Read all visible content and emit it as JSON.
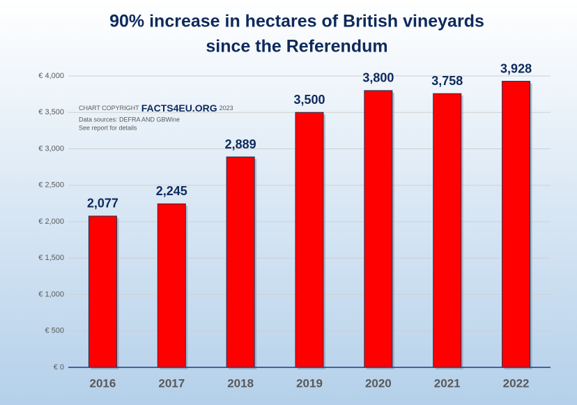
{
  "chart_data": {
    "type": "bar",
    "title": [
      "90% increase in hectares of British vineyards",
      "since the Referendum"
    ],
    "annotations": [
      "CHART COPYRIGHT",
      "FACTS4EU.ORG",
      "2023",
      "Data sources: DEFRA AND GBWine",
      "See report for details"
    ],
    "categories": [
      "2016",
      "2017",
      "2018",
      "2019",
      "2020",
      "2021",
      "2022"
    ],
    "values": [
      2077,
      2245,
      2889,
      3500,
      3800,
      3758,
      3928
    ],
    "value_labels": [
      "2,077",
      "2,245",
      "2,889",
      "3,500",
      "3,800",
      "3,758",
      "3,928"
    ],
    "color": "#ff0000",
    "ylim": [
      0,
      4000
    ],
    "yticks": [
      {
        "value": 0,
        "label": "€ 0"
      },
      {
        "value": 500,
        "label": "€ 500"
      },
      {
        "value": 1000,
        "label": "€ 1,000"
      },
      {
        "value": 1500,
        "label": "€ 1,500"
      },
      {
        "value": 2000,
        "label": "€ 2,000"
      },
      {
        "value": 2500,
        "label": "€ 2,500"
      },
      {
        "value": 3000,
        "label": "€ 3,000"
      },
      {
        "value": 3500,
        "label": "€ 3,500"
      },
      {
        "value": 4000,
        "label": "€ 4,000"
      }
    ],
    "grid": true
  }
}
